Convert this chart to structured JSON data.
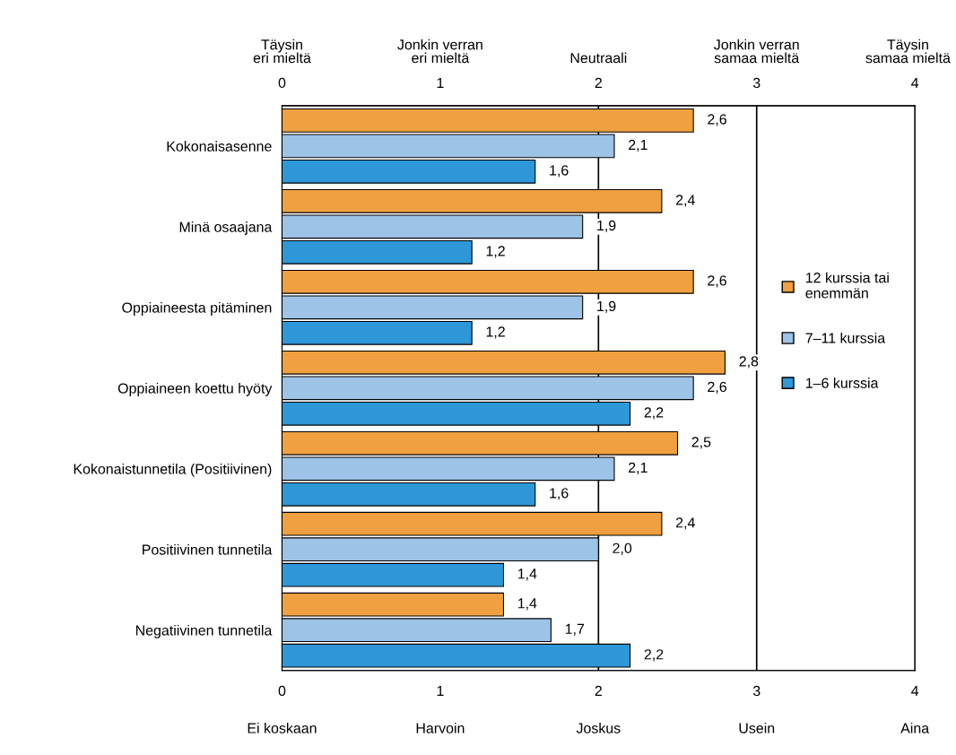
{
  "chart_data": {
    "type": "bar",
    "orientation": "horizontal",
    "categories": [
      "Kokonaisasenne",
      "Minä osaajana",
      "Oppiaineesta pitäminen",
      "Oppiaineen koettu hyöty",
      "Kokonaistunnetila (Positiivinen)",
      "Positiivinen tunnetila",
      "Negatiivinen tunnetila"
    ],
    "series": [
      {
        "name": "12 kurssia tai\nenemmän",
        "color": "#f0a040",
        "values": [
          2.6,
          2.4,
          2.6,
          2.8,
          2.5,
          2.4,
          1.4
        ],
        "value_labels": [
          "2,6",
          "2,4",
          "2,6",
          "2,8",
          "2,5",
          "2,4",
          "1,4"
        ]
      },
      {
        "name": "7–11 kurssia",
        "color": "#9dc3e6",
        "values": [
          2.1,
          1.9,
          1.9,
          2.6,
          2.1,
          2.0,
          1.7
        ],
        "value_labels": [
          "2,1",
          "1,9",
          "1,9",
          "2,6",
          "2,1",
          "2,0",
          "1,7"
        ]
      },
      {
        "name": "1–6 kurssia",
        "color": "#2e97d8",
        "values": [
          1.6,
          1.2,
          1.2,
          2.2,
          1.6,
          1.4,
          2.2
        ],
        "value_labels": [
          "1,6",
          "1,2",
          "1,2",
          "2,2",
          "1,6",
          "1,4",
          "2,2"
        ]
      }
    ],
    "xlim": [
      0,
      4
    ],
    "xticks": [
      0,
      1,
      2,
      3,
      4
    ],
    "x2lim": [
      0,
      4
    ],
    "x2ticks": [
      0,
      1,
      2,
      3,
      4
    ],
    "annotations": [
      "Täysin\neri mieltä",
      "Jonkin verran\neri mieltä",
      "Neutraali",
      "Jonkin verran\nsamaa mieltä",
      "Täysin\nsamaa mieltä",
      "Ei koskaan",
      "Harvoin",
      "Joskus",
      "Usein",
      "Aina"
    ],
    "ref_lines": [
      {
        "axis": "x",
        "value": 2,
        "color": "#000000"
      },
      {
        "axis": "x",
        "value": 3,
        "color": "#000000"
      }
    ],
    "grid": false,
    "legend": "right"
  }
}
